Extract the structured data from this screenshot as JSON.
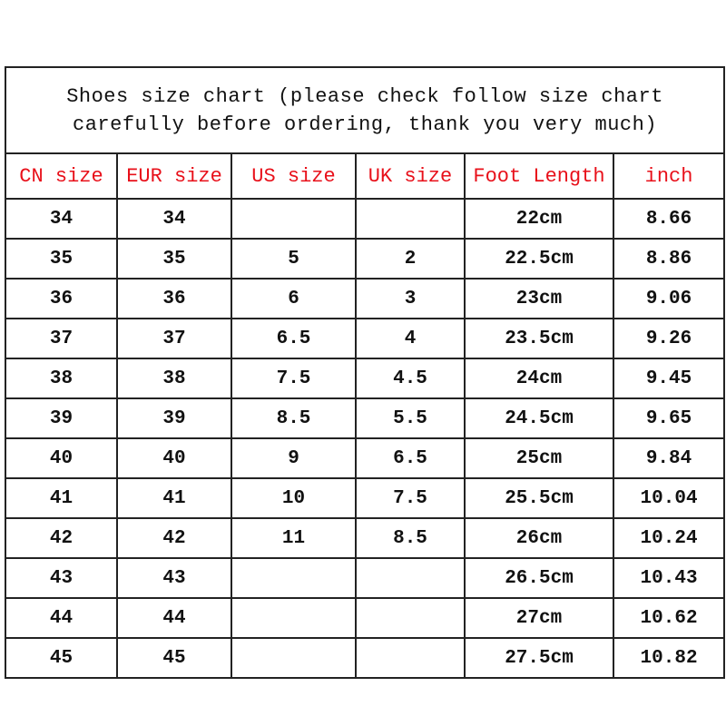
{
  "title_line1": "Shoes size chart (please check follow size chart",
  "title_line2": "carefully before ordering, thank you very much)",
  "headers": [
    "CN size",
    "EUR size",
    "US size",
    "UK size",
    "Foot Length",
    "inch"
  ],
  "header_color": "#e8101a",
  "rows": [
    [
      "34",
      "34",
      "",
      "",
      "22cm",
      "8.66"
    ],
    [
      "35",
      "35",
      "5",
      "2",
      "22.5cm",
      "8.86"
    ],
    [
      "36",
      "36",
      "6",
      "3",
      "23cm",
      "9.06"
    ],
    [
      "37",
      "37",
      "6.5",
      "4",
      "23.5cm",
      "9.26"
    ],
    [
      "38",
      "38",
      "7.5",
      "4.5",
      "24cm",
      "9.45"
    ],
    [
      "39",
      "39",
      "8.5",
      "5.5",
      "24.5cm",
      "9.65"
    ],
    [
      "40",
      "40",
      "9",
      "6.5",
      "25cm",
      "9.84"
    ],
    [
      "41",
      "41",
      "10",
      "7.5",
      "25.5cm",
      "10.04"
    ],
    [
      "42",
      "42",
      "11",
      "8.5",
      "26cm",
      "10.24"
    ],
    [
      "43",
      "43",
      "",
      "",
      "26.5cm",
      "10.43"
    ],
    [
      "44",
      "44",
      "",
      "",
      "27cm",
      "10.62"
    ],
    [
      "45",
      "45",
      "",
      "",
      "27.5cm",
      "10.82"
    ]
  ]
}
